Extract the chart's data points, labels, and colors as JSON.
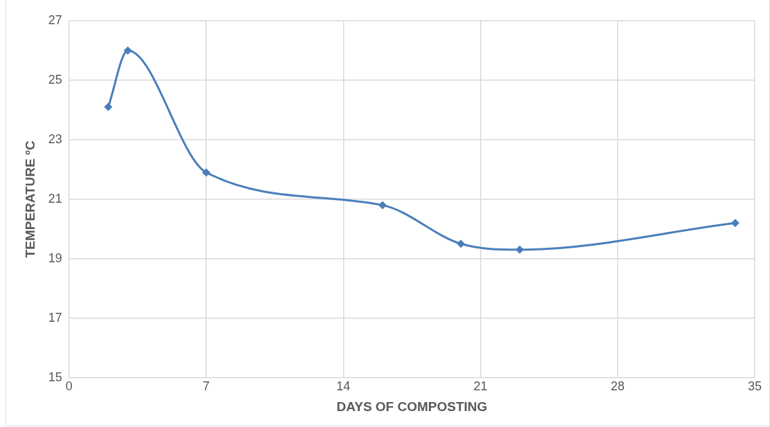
{
  "chart_data": {
    "type": "line",
    "xlabel": "DAYS OF COMPOSTING",
    "ylabel": "TEMPERATURE ºC",
    "x": [
      2,
      3,
      7,
      16,
      20,
      23,
      34
    ],
    "series": [
      {
        "color": "#4a7ebb",
        "values": [
          24.1,
          26.0,
          21.9,
          20.8,
          19.5,
          19.3,
          20.2
        ]
      }
    ],
    "xlim": [
      0,
      35
    ],
    "xticks": [
      0,
      7,
      14,
      21,
      28,
      35
    ],
    "ylim": [
      15,
      27
    ],
    "yticks": [
      15,
      17,
      19,
      21,
      23,
      25,
      27
    ],
    "grid": true,
    "legend": false,
    "marker": "diamond",
    "line_style": "solid"
  }
}
